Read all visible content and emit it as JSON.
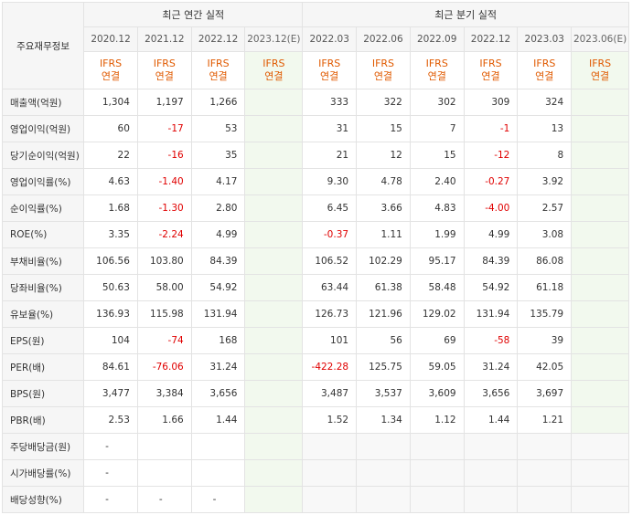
{
  "corner_label": "주요재무정보",
  "groups": {
    "annual": "최근 연간 실적",
    "quarterly": "최근 분기 실적"
  },
  "annual_periods": [
    "2020.12",
    "2021.12",
    "2022.12",
    "2023.12(E)"
  ],
  "quarterly_periods": [
    "2022.03",
    "2022.06",
    "2022.09",
    "2022.12",
    "2023.03",
    "2023.06(E)"
  ],
  "standard": {
    "line1": "IFRS",
    "line2": "연결"
  },
  "rows": [
    {
      "label": "매출액(억원)",
      "annual": [
        "1,304",
        "1,197",
        "1,266",
        ""
      ],
      "quarterly": [
        "333",
        "322",
        "302",
        "309",
        "324",
        ""
      ]
    },
    {
      "label": "영업이익(억원)",
      "annual": [
        "60",
        "-17",
        "53",
        ""
      ],
      "quarterly": [
        "31",
        "15",
        "7",
        "-1",
        "13",
        ""
      ]
    },
    {
      "label": "당기순이익(억원)",
      "annual": [
        "22",
        "-16",
        "35",
        ""
      ],
      "quarterly": [
        "21",
        "12",
        "15",
        "-12",
        "8",
        ""
      ]
    },
    {
      "label": "영업이익률(%)",
      "annual": [
        "4.63",
        "-1.40",
        "4.17",
        ""
      ],
      "quarterly": [
        "9.30",
        "4.78",
        "2.40",
        "-0.27",
        "3.92",
        ""
      ]
    },
    {
      "label": "순이익률(%)",
      "annual": [
        "1.68",
        "-1.30",
        "2.80",
        ""
      ],
      "quarterly": [
        "6.45",
        "3.66",
        "4.83",
        "-4.00",
        "2.57",
        ""
      ]
    },
    {
      "label": "ROE(%)",
      "annual": [
        "3.35",
        "-2.24",
        "4.99",
        ""
      ],
      "quarterly": [
        "-0.37",
        "1.11",
        "1.99",
        "4.99",
        "3.08",
        ""
      ]
    },
    {
      "label": "부채비율(%)",
      "annual": [
        "106.56",
        "103.80",
        "84.39",
        ""
      ],
      "quarterly": [
        "106.52",
        "102.29",
        "95.17",
        "84.39",
        "86.08",
        ""
      ]
    },
    {
      "label": "당좌비율(%)",
      "annual": [
        "50.63",
        "58.00",
        "54.92",
        ""
      ],
      "quarterly": [
        "63.44",
        "61.38",
        "58.48",
        "54.92",
        "61.18",
        ""
      ]
    },
    {
      "label": "유보율(%)",
      "annual": [
        "136.93",
        "115.98",
        "131.94",
        ""
      ],
      "quarterly": [
        "126.73",
        "121.96",
        "129.02",
        "131.94",
        "135.79",
        ""
      ]
    },
    {
      "label": "EPS(원)",
      "annual": [
        "104",
        "-74",
        "168",
        ""
      ],
      "quarterly": [
        "101",
        "56",
        "69",
        "-58",
        "39",
        ""
      ]
    },
    {
      "label": "PER(배)",
      "annual": [
        "84.61",
        "-76.06",
        "31.24",
        ""
      ],
      "quarterly": [
        "-422.28",
        "125.75",
        "59.05",
        "31.24",
        "42.05",
        ""
      ]
    },
    {
      "label": "BPS(원)",
      "annual": [
        "3,477",
        "3,384",
        "3,656",
        ""
      ],
      "quarterly": [
        "3,487",
        "3,537",
        "3,609",
        "3,656",
        "3,697",
        ""
      ]
    },
    {
      "label": "PBR(배)",
      "annual": [
        "2.53",
        "1.66",
        "1.44",
        ""
      ],
      "quarterly": [
        "1.52",
        "1.34",
        "1.12",
        "1.44",
        "1.21",
        ""
      ]
    },
    {
      "label": "주당배당금(원)",
      "annual": [
        "-",
        "",
        "",
        ""
      ],
      "quarterly": null
    },
    {
      "label": "시가배당률(%)",
      "annual": [
        "-",
        "",
        "",
        ""
      ],
      "quarterly": null
    },
    {
      "label": "배당성향(%)",
      "annual": [
        "-",
        "-",
        "-",
        ""
      ],
      "quarterly": null
    }
  ],
  "colors": {
    "negative": "#e00000",
    "standard_text": "#e05a00",
    "estimate_bg": "#f2f9ee",
    "header_bg": "#f6f6f6"
  }
}
